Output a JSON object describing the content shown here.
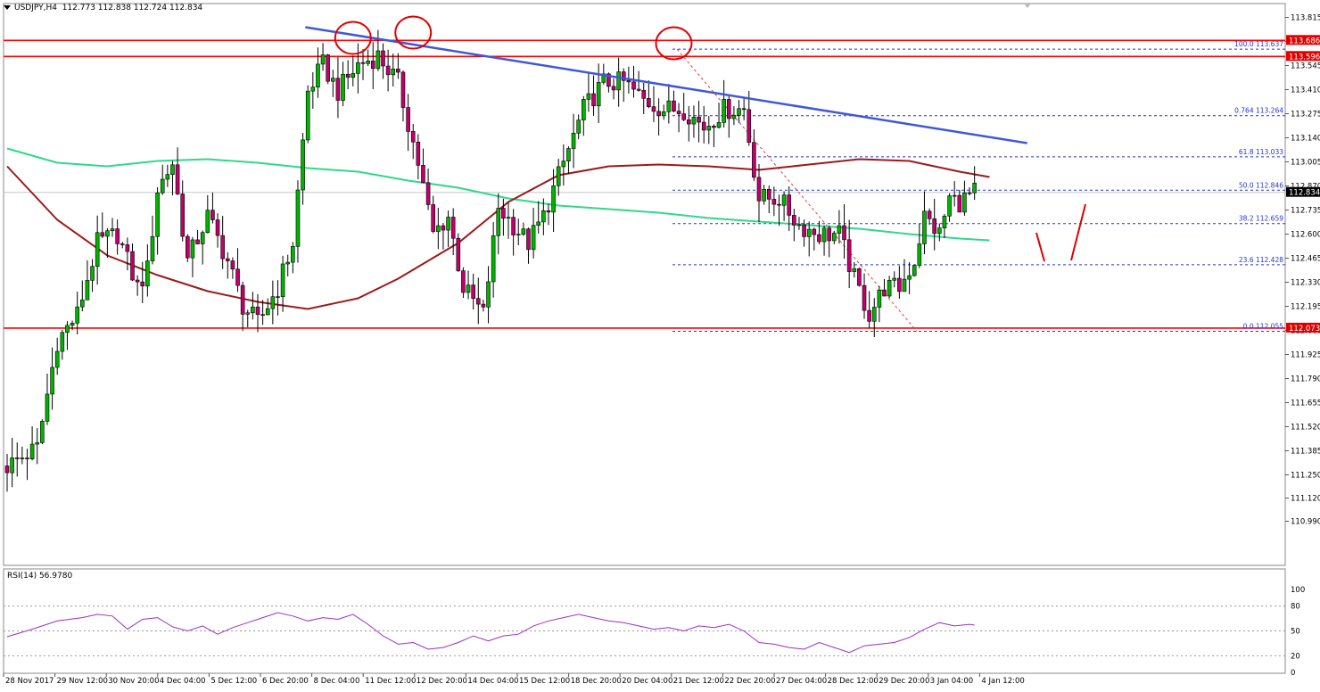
{
  "header": {
    "symbol": "USDJPY,H4",
    "ohlc": "112.773 112.838 112.724 112.834"
  },
  "rsi_panel": {
    "label": "RSI(14) 56.9780",
    "levels": [
      "100",
      "80",
      "50",
      "20",
      "0"
    ]
  },
  "colors": {
    "bull": "#00b400",
    "bear": "#c0006b",
    "horizontal_lines": "#ff0000",
    "trend_line": "#3f57d9",
    "ma_red": "#9b1b1b",
    "ma_green": "#30d88a",
    "fib": "#2233dd",
    "rsi_line": "#9b2fc9"
  },
  "chart_data": {
    "type": "candlestick",
    "instrument": "USDJPY",
    "timeframe": "H4",
    "y_ticks": [
      "113.815",
      "113.680",
      "113.545",
      "113.410",
      "113.275",
      "113.140",
      "113.005",
      "112.870",
      "112.735",
      "112.600",
      "112.465",
      "112.330",
      "112.195",
      "112.060",
      "111.925",
      "111.790",
      "111.655",
      "111.520",
      "111.385",
      "111.250",
      "111.120",
      "110.990"
    ],
    "ylim": [
      110.99,
      113.85
    ],
    "x_labels": [
      "28 Nov 2017",
      "29 Nov 12:00",
      "30 Nov 20:00",
      "4 Dec 04:00",
      "5 Dec 12:00",
      "6 Dec 20:00",
      "8 Dec 04:00",
      "11 Dec 12:00",
      "12 Dec 20:00",
      "14 Dec 04:00",
      "15 Dec 12:00",
      "18 Dec 20:00",
      "20 Dec 04:00",
      "21 Dec 12:00",
      "22 Dec 20:00",
      "27 Dec 04:00",
      "28 Dec 12:00",
      "29 Dec 20:00",
      "3 Jan 04:00",
      "4 Jan 12:00"
    ],
    "price_tags": [
      {
        "label": "113.686",
        "value": 113.686,
        "style": "red"
      },
      {
        "label": "113.596",
        "value": 113.596,
        "style": "red"
      },
      {
        "label": "112.834",
        "value": 112.834,
        "style": "black"
      },
      {
        "label": "112.073",
        "value": 112.073,
        "style": "red"
      }
    ],
    "horizontal_lines": [
      113.686,
      113.596,
      112.073
    ],
    "fib_levels": [
      {
        "label": "100.0 113.637",
        "value": 113.637
      },
      {
        "label": "0.764 113.264",
        "value": 113.264
      },
      {
        "label": "61.8 113.033",
        "value": 113.033
      },
      {
        "label": "50.0 112.846",
        "value": 112.846
      },
      {
        "label": "38.2 112.659",
        "value": 112.659
      },
      {
        "label": "23.6 112.428",
        "value": 112.428
      },
      {
        "label": "0.0 112.055",
        "value": 112.055
      }
    ],
    "trend_line": {
      "from": [
        59.5,
        113.76
      ],
      "to": [
        203.5,
        113.11
      ]
    },
    "ma_red": [
      [
        0,
        112.98
      ],
      [
        10,
        112.68
      ],
      [
        20,
        112.48
      ],
      [
        30,
        112.37
      ],
      [
        40,
        112.28
      ],
      [
        50,
        112.22
      ],
      [
        60,
        112.18
      ],
      [
        70,
        112.24
      ],
      [
        78,
        112.35
      ],
      [
        90,
        112.55
      ],
      [
        100,
        112.78
      ],
      [
        110,
        112.93
      ],
      [
        120,
        112.98
      ],
      [
        130,
        112.99
      ],
      [
        140,
        112.98
      ],
      [
        150,
        112.96
      ],
      [
        160,
        112.99
      ],
      [
        170,
        113.02
      ],
      [
        180,
        113.01
      ],
      [
        190,
        112.95
      ],
      [
        196,
        112.92
      ]
    ],
    "ma_green": [
      [
        0,
        113.08
      ],
      [
        10,
        113.0
      ],
      [
        20,
        112.98
      ],
      [
        30,
        113.01
      ],
      [
        40,
        113.02
      ],
      [
        50,
        113.0
      ],
      [
        60,
        112.97
      ],
      [
        70,
        112.95
      ],
      [
        80,
        112.9
      ],
      [
        90,
        112.86
      ],
      [
        100,
        112.8
      ],
      [
        110,
        112.76
      ],
      [
        120,
        112.74
      ],
      [
        130,
        112.72
      ],
      [
        140,
        112.69
      ],
      [
        150,
        112.67
      ],
      [
        160,
        112.65
      ],
      [
        170,
        112.63
      ],
      [
        180,
        112.6
      ],
      [
        190,
        112.575
      ],
      [
        196,
        112.565
      ]
    ],
    "rsi_series": [
      [
        0,
        43
      ],
      [
        5,
        52
      ],
      [
        10,
        62
      ],
      [
        15,
        66
      ],
      [
        18,
        70
      ],
      [
        21,
        68
      ],
      [
        24,
        52
      ],
      [
        27,
        64
      ],
      [
        30,
        66
      ],
      [
        33,
        55
      ],
      [
        36,
        50
      ],
      [
        39,
        56
      ],
      [
        42,
        46
      ],
      [
        45,
        54
      ],
      [
        48,
        60
      ],
      [
        51,
        66
      ],
      [
        54,
        72
      ],
      [
        57,
        68
      ],
      [
        60,
        62
      ],
      [
        63,
        66
      ],
      [
        66,
        64
      ],
      [
        69,
        70
      ],
      [
        72,
        58
      ],
      [
        75,
        44
      ],
      [
        78,
        34
      ],
      [
        81,
        36
      ],
      [
        84,
        28
      ],
      [
        87,
        30
      ],
      [
        90,
        36
      ],
      [
        93,
        44
      ],
      [
        96,
        38
      ],
      [
        99,
        44
      ],
      [
        102,
        46
      ],
      [
        105,
        56
      ],
      [
        108,
        62
      ],
      [
        111,
        66
      ],
      [
        114,
        70
      ],
      [
        117,
        66
      ],
      [
        120,
        62
      ],
      [
        123,
        60
      ],
      [
        126,
        56
      ],
      [
        129,
        52
      ],
      [
        132,
        54
      ],
      [
        135,
        50
      ],
      [
        138,
        56
      ],
      [
        141,
        54
      ],
      [
        144,
        58
      ],
      [
        147,
        50
      ],
      [
        150,
        36
      ],
      [
        153,
        34
      ],
      [
        156,
        30
      ],
      [
        159,
        28
      ],
      [
        162,
        36
      ],
      [
        165,
        30
      ],
      [
        168,
        24
      ],
      [
        171,
        32
      ],
      [
        174,
        34
      ],
      [
        177,
        36
      ],
      [
        180,
        42
      ],
      [
        183,
        52
      ],
      [
        186,
        60
      ],
      [
        189,
        56
      ],
      [
        192,
        58
      ],
      [
        193,
        56.98
      ]
    ],
    "signal_arrows": [
      "down",
      "up"
    ]
  }
}
